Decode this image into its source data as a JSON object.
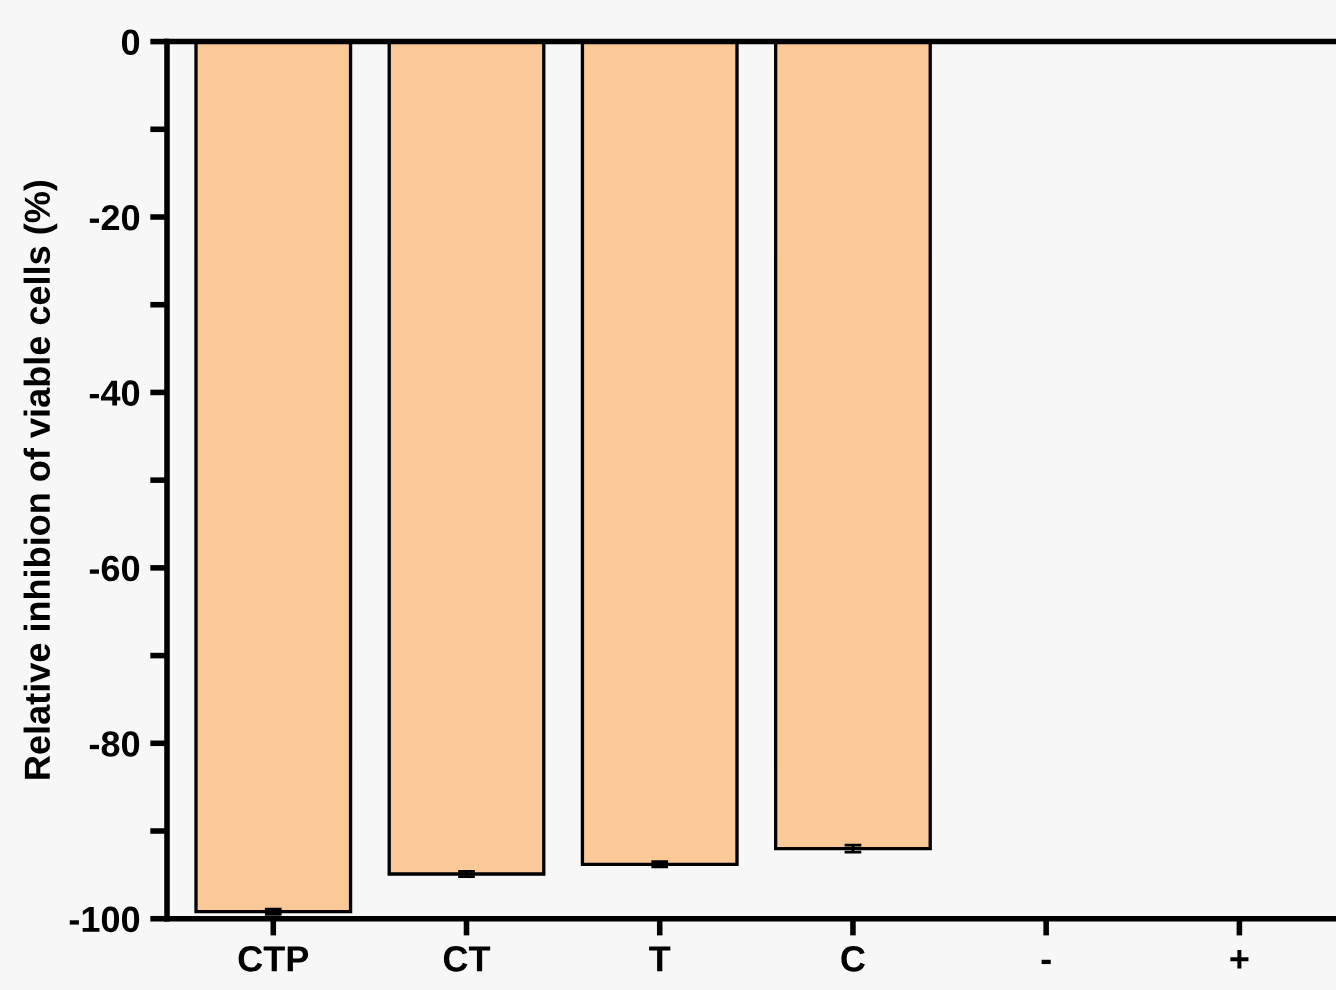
{
  "chart_data": {
    "type": "bar",
    "ylabel": "Relative inhibion of viable cells (%)",
    "categories": [
      "CTP",
      "CT",
      "T",
      "C",
      "-",
      "+"
    ],
    "values": [
      -99.2,
      -94.9,
      -93.8,
      -92.0,
      null,
      null
    ],
    "errors": [
      0.3,
      0.3,
      0.3,
      0.4,
      null,
      null
    ],
    "color": "#fbc897",
    "ylim": [
      -100,
      0
    ],
    "yticks": [
      -100,
      {
        "value": -90,
        "label": null
      },
      -80,
      {
        "value": -70,
        "label": null
      },
      -60,
      {
        "value": -50,
        "label": null
      },
      -40,
      {
        "value": -30,
        "label": null
      },
      -20,
      {
        "value": -10,
        "label": null
      },
      0
    ],
    "grid": false,
    "legend": false
  }
}
